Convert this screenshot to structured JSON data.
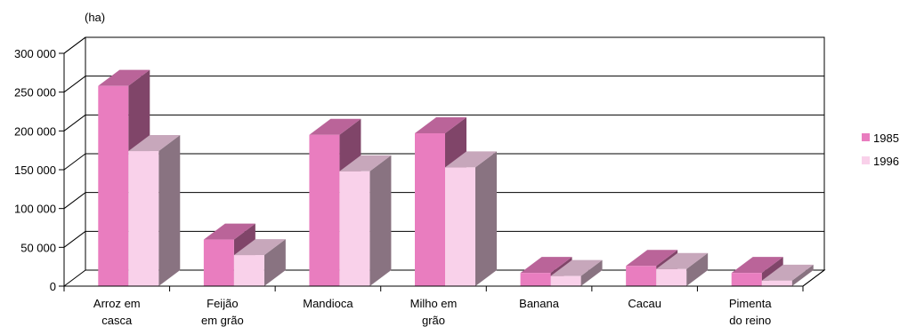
{
  "chart_data": {
    "type": "bar",
    "style": "3d-clustered-column",
    "unit_label": "(ha)",
    "categories": [
      [
        "Arroz em",
        "casca"
      ],
      [
        "Feijão",
        "em grão"
      ],
      [
        "Mandioca"
      ],
      [
        "Milho em",
        "grão"
      ],
      [
        "Banana"
      ],
      [
        "Cacau"
      ],
      [
        "Pimenta",
        "do reino"
      ]
    ],
    "series": [
      {
        "name": "1985",
        "values": [
          258000,
          60000,
          195000,
          197000,
          17000,
          26000,
          17000
        ],
        "color": "#e97dbf"
      },
      {
        "name": "1996",
        "values": [
          174000,
          40000,
          148000,
          153000,
          13000,
          22000,
          7000
        ],
        "color": "#f9d1ea"
      }
    ],
    "ylim": [
      0,
      300000
    ],
    "yticks": [
      "0",
      "50 000",
      "100 000",
      "150 000",
      "200 000",
      "250 000",
      "300 000"
    ],
    "grid": true,
    "legend_position": "right"
  }
}
